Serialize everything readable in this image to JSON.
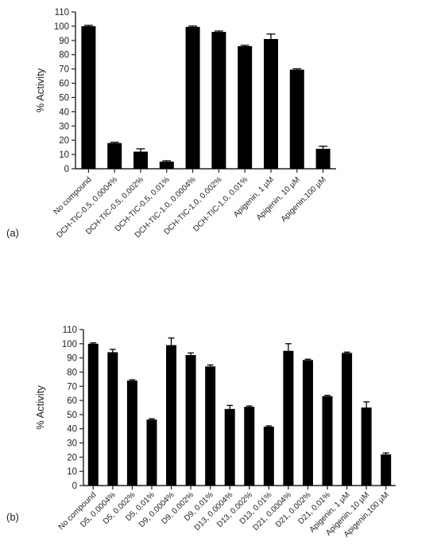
{
  "chart_data": [
    {
      "type": "bar",
      "panel_label": "(a)",
      "ylabel": "% Activity",
      "xlabel": "",
      "ylim": [
        0,
        110
      ],
      "yticks": [
        0,
        10,
        20,
        30,
        40,
        50,
        60,
        70,
        80,
        90,
        100,
        110
      ],
      "grid": false,
      "error_bars": true,
      "categories": [
        "No compound",
        "DCH-TIC-0.5, 0.0004%",
        "DCH-TIC-0.5, 0.002%",
        "DCH-TIC-0.5, 0.01%",
        "DCH-TIC-1.0, 0.0004%",
        "DCH-TIC-1.0, 0.002%",
        "DCH-TIC-1.0, 0.01%",
        "Apigenin, 1 µM",
        "Apigenin, 10 µM",
        "Apigenin,100 µM"
      ],
      "values": [
        100,
        18,
        12,
        5,
        99.5,
        96,
        86,
        91,
        69.5,
        14
      ],
      "errors": [
        0.6,
        0.6,
        2,
        0.6,
        0.6,
        0.6,
        0.6,
        3.5,
        0.6,
        1.8
      ],
      "bar_color": "#000000"
    },
    {
      "type": "bar",
      "panel_label": "(b)",
      "ylabel": "% Activity",
      "xlabel": "",
      "ylim": [
        0,
        110
      ],
      "yticks": [
        0,
        10,
        20,
        30,
        40,
        50,
        60,
        70,
        80,
        90,
        100,
        110
      ],
      "grid": false,
      "error_bars": true,
      "categories": [
        "No compound",
        "D5, 0.0004%",
        "D5, 0.002%",
        "D5, 0.01%",
        "D9, 0.0004%",
        "D9, 0.002%",
        "D9, 0.01%",
        "D13, 0.0004%",
        "D13, 0.002%",
        "D13, 0.01%",
        "D21, 0.0004%",
        "D21, 0.002%",
        "D21, 0.01%",
        "Apigenin, 1 µM",
        "Apigenin, 10 µM",
        "Apigenin,100 µM"
      ],
      "values": [
        100,
        94,
        74,
        46.5,
        99,
        92,
        84,
        54,
        55.5,
        41.5,
        95,
        88.5,
        63,
        93.5,
        55,
        22
      ],
      "errors": [
        0.6,
        2,
        0.6,
        0.6,
        5,
        1.5,
        1,
        2.5,
        0.6,
        0.6,
        5,
        0.6,
        0.6,
        0.6,
        4,
        1
      ],
      "bar_color": "#000000"
    }
  ]
}
